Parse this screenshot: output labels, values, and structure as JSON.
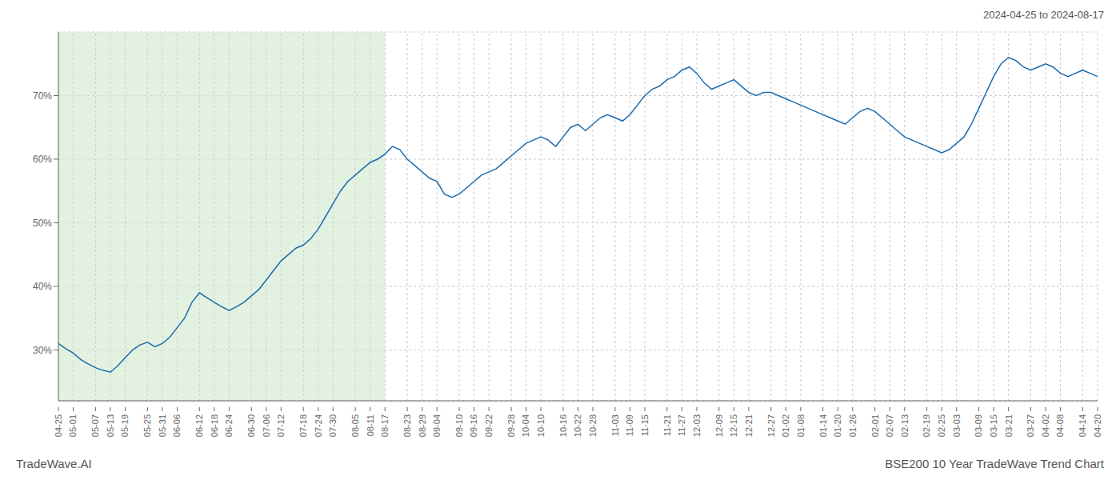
{
  "chart_data": {
    "type": "line",
    "title": "BSE200 10 Year TradeWave Trend Chart",
    "subtitle": "2024-04-25 to 2024-08-17",
    "annotations": [
      "TradeWave.AI"
    ],
    "categories": [
      "04-25",
      null,
      "05-01",
      null,
      null,
      "05-07",
      null,
      "05-13",
      null,
      "05-19",
      null,
      null,
      "05-25",
      null,
      "05-31",
      null,
      "06-06",
      null,
      null,
      "06-12",
      null,
      "06-18",
      null,
      "06-24",
      null,
      null,
      "06-30",
      null,
      "07-06",
      null,
      "07-12",
      null,
      null,
      "07-18",
      null,
      "07-24",
      null,
      "07-30",
      null,
      null,
      "08-05",
      null,
      "08-11",
      null,
      "08-17",
      null,
      null,
      "08-23",
      null,
      "08-29",
      null,
      "09-04",
      null,
      null,
      "09-10",
      null,
      "09-16",
      null,
      "09-22",
      null,
      null,
      "09-28",
      null,
      "10-04",
      null,
      "10-10",
      null,
      null,
      "10-16",
      null,
      "10-22",
      null,
      "10-28",
      null,
      null,
      "11-03",
      null,
      "11-09",
      null,
      "11-15",
      null,
      null,
      "11-21",
      null,
      "11-27",
      null,
      "12-03",
      null,
      null,
      "12-09",
      null,
      "12-15",
      null,
      "12-21",
      null,
      null,
      "12-27",
      null,
      "01-02",
      null,
      "01-08",
      null,
      null,
      "01-14",
      null,
      "01-20",
      null,
      "01-26",
      null,
      null,
      "02-01",
      null,
      "02-07",
      null,
      "02-13",
      null,
      null,
      "02-19",
      null,
      "02-25",
      null,
      "03-03",
      null,
      null,
      "03-09",
      null,
      "03-15",
      null,
      "03-21",
      null,
      null,
      "03-27",
      null,
      "04-02",
      null,
      "04-08",
      null,
      null,
      "04-14",
      null,
      "04-20"
    ],
    "values": [
      31.0,
      30.2,
      29.5,
      28.5,
      27.8,
      27.2,
      26.8,
      26.5,
      27.5,
      28.8,
      30.0,
      30.8,
      31.2,
      30.5,
      31.0,
      32.0,
      33.5,
      35.0,
      37.5,
      39.0,
      38.2,
      37.5,
      36.8,
      36.2,
      36.8,
      37.5,
      38.5,
      39.5,
      41.0,
      42.5,
      44.0,
      45.0,
      46.0,
      46.5,
      47.5,
      49.0,
      51.0,
      53.0,
      55.0,
      56.5,
      57.5,
      58.5,
      59.5,
      60.0,
      60.8,
      62.0,
      61.5,
      60.0,
      59.0,
      58.0,
      57.0,
      56.5,
      54.5,
      54.0,
      54.5,
      55.5,
      56.5,
      57.5,
      58.0,
      58.5,
      59.5,
      60.5,
      61.5,
      62.5,
      63.0,
      63.5,
      63.0,
      62.0,
      63.5,
      65.0,
      65.5,
      64.5,
      65.5,
      66.5,
      67.0,
      66.5,
      66.0,
      67.0,
      68.5,
      70.0,
      71.0,
      71.5,
      72.5,
      73.0,
      74.0,
      74.5,
      73.5,
      72.0,
      71.0,
      71.5,
      72.0,
      72.5,
      71.5,
      70.5,
      70.0,
      70.5,
      70.5,
      70.0,
      69.5,
      69.0,
      68.5,
      68.0,
      67.5,
      67.0,
      66.5,
      66.0,
      65.5,
      66.5,
      67.5,
      68.0,
      67.5,
      66.5,
      65.5,
      64.5,
      63.5,
      63.0,
      62.5,
      62.0,
      61.5,
      61.0,
      61.5,
      62.5,
      63.5,
      65.5,
      68.0,
      70.5,
      73.0,
      75.0,
      76.0,
      75.5,
      74.5,
      74.0,
      74.5,
      75.0,
      74.5,
      73.5,
      73.0,
      73.5,
      74.0,
      73.5,
      73.0
    ],
    "color": "#1a6baf",
    "ylim": [
      22,
      80
    ],
    "yticks": [
      {
        "value": 30,
        "label": "30%"
      },
      {
        "value": 40,
        "label": "40%"
      },
      {
        "value": 50,
        "label": "50%"
      },
      {
        "value": 60,
        "label": "60%"
      },
      {
        "value": 70,
        "label": "70%"
      }
    ],
    "grid": true,
    "shaded_region": {
      "from": "04-25",
      "to": "08-17",
      "color": "#d0eacc"
    }
  }
}
